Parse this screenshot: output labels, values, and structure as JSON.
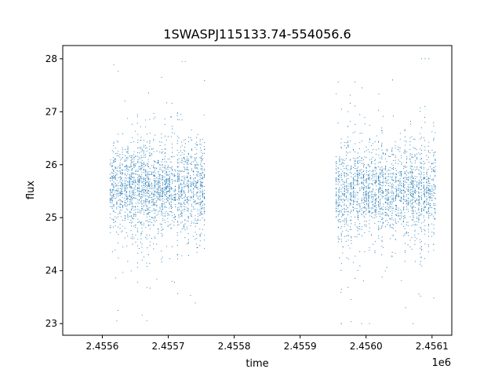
{
  "chart_data": {
    "type": "scatter",
    "title": "1SWASPJ115133.74-554056.6",
    "xlabel": "time",
    "ylabel": "flux",
    "x_offset_label": "1e6",
    "xlim": [
      2.45554,
      2.45613
    ],
    "ylim": [
      22.78,
      28.25
    ],
    "x_ticks": [
      2.4556,
      2.4557,
      2.4558,
      2.4559,
      2.456,
      2.4561
    ],
    "x_tick_labels": [
      "2.4556",
      "2.4557",
      "2.4558",
      "2.4559",
      "2.4560",
      "2.4561"
    ],
    "y_ticks": [
      23,
      24,
      25,
      26,
      27,
      28
    ],
    "y_tick_labels": [
      "23",
      "24",
      "25",
      "26",
      "27",
      "28"
    ],
    "grid": false,
    "legend": "none",
    "point_color": "#1f77b4",
    "series": [
      {
        "observing_seasons": [
          {
            "x_range": [
              2.455612,
              2.455755
            ],
            "y_center": 25.55,
            "y_core_spread": 0.4,
            "y_min": 23.05,
            "y_max": 27.95
          },
          {
            "x_range": [
              2.455955,
              2.456105
            ],
            "y_center": 25.5,
            "y_core_spread": 0.45,
            "y_min": 23.0,
            "y_max": 28.0
          }
        ],
        "samples": [
          {
            "x": 2.45562,
            "y": 25.8
          },
          {
            "x": 2.45563,
            "y": 25.3
          },
          {
            "x": 2.45564,
            "y": 25.9
          },
          {
            "x": 2.45565,
            "y": 25.2
          },
          {
            "x": 2.45566,
            "y": 25.6
          },
          {
            "x": 2.45567,
            "y": 24.3
          },
          {
            "x": 2.45568,
            "y": 25.7
          },
          {
            "x": 2.45569,
            "y": 25.4
          },
          {
            "x": 2.4557,
            "y": 25.5
          },
          {
            "x": 2.45571,
            "y": 25.9
          },
          {
            "x": 2.45572,
            "y": 25.1
          },
          {
            "x": 2.45573,
            "y": 25.6
          },
          {
            "x": 2.45574,
            "y": 25.3
          },
          {
            "x": 2.45575,
            "y": 25.8
          },
          {
            "x": 2.45596,
            "y": 25.4
          },
          {
            "x": 2.45597,
            "y": 25.6
          },
          {
            "x": 2.45598,
            "y": 25.2
          },
          {
            "x": 2.45599,
            "y": 25.8
          },
          {
            "x": 2.456,
            "y": 25.5
          },
          {
            "x": 2.45601,
            "y": 25.3
          },
          {
            "x": 2.45602,
            "y": 25.7
          },
          {
            "x": 2.45603,
            "y": 25.1
          },
          {
            "x": 2.45604,
            "y": 27.6
          },
          {
            "x": 2.45605,
            "y": 25.6
          },
          {
            "x": 2.45606,
            "y": 23.3
          },
          {
            "x": 2.45607,
            "y": 25.4
          },
          {
            "x": 2.45608,
            "y": 25.9
          },
          {
            "x": 2.45609,
            "y": 25.2
          },
          {
            "x": 2.4561,
            "y": 25.5
          }
        ]
      }
    ]
  }
}
